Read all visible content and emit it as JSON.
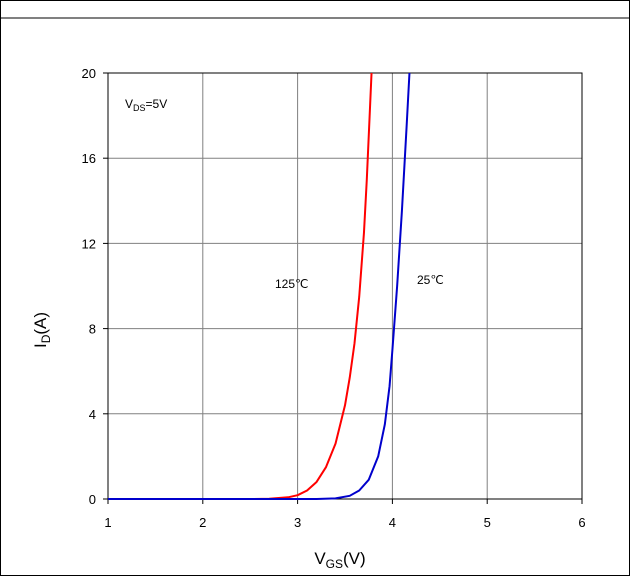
{
  "chart_data": {
    "type": "line",
    "title": "",
    "xlabel_main": "V",
    "xlabel_sub": "GS",
    "xlabel_unit": "(V)",
    "ylabel_main": "I",
    "ylabel_sub": "D",
    "ylabel_unit": "(A)",
    "xlim": [
      1,
      6
    ],
    "ylim": [
      0,
      20
    ],
    "x_ticks": [
      "1",
      "2",
      "3",
      "4",
      "5",
      "6"
    ],
    "y_ticks": [
      "0",
      "4",
      "8",
      "12",
      "16",
      "20"
    ],
    "grid": true,
    "condition_main": "V",
    "condition_sub": "DS",
    "condition_value": "=5V",
    "series": [
      {
        "name": "125℃",
        "color": "#ff0000",
        "points": [
          [
            1.0,
            0
          ],
          [
            2.5,
            0
          ],
          [
            2.7,
            0.01
          ],
          [
            2.9,
            0.08
          ],
          [
            3.0,
            0.18
          ],
          [
            3.1,
            0.4
          ],
          [
            3.2,
            0.8
          ],
          [
            3.3,
            1.5
          ],
          [
            3.4,
            2.6
          ],
          [
            3.5,
            4.4
          ],
          [
            3.55,
            5.7
          ],
          [
            3.6,
            7.3
          ],
          [
            3.65,
            9.5
          ],
          [
            3.7,
            12.5
          ],
          [
            3.73,
            15.0
          ],
          [
            3.76,
            18.0
          ],
          [
            3.78,
            20.0
          ]
        ]
      },
      {
        "name": "25℃",
        "color": "#0000cc",
        "points": [
          [
            1.0,
            0
          ],
          [
            3.2,
            0
          ],
          [
            3.4,
            0.03
          ],
          [
            3.55,
            0.15
          ],
          [
            3.65,
            0.4
          ],
          [
            3.75,
            0.9
          ],
          [
            3.85,
            2.0
          ],
          [
            3.92,
            3.5
          ],
          [
            3.97,
            5.3
          ],
          [
            4.0,
            7.0
          ],
          [
            4.05,
            10.0
          ],
          [
            4.1,
            13.5
          ],
          [
            4.15,
            17.5
          ],
          [
            4.18,
            20.0
          ]
        ]
      }
    ]
  }
}
